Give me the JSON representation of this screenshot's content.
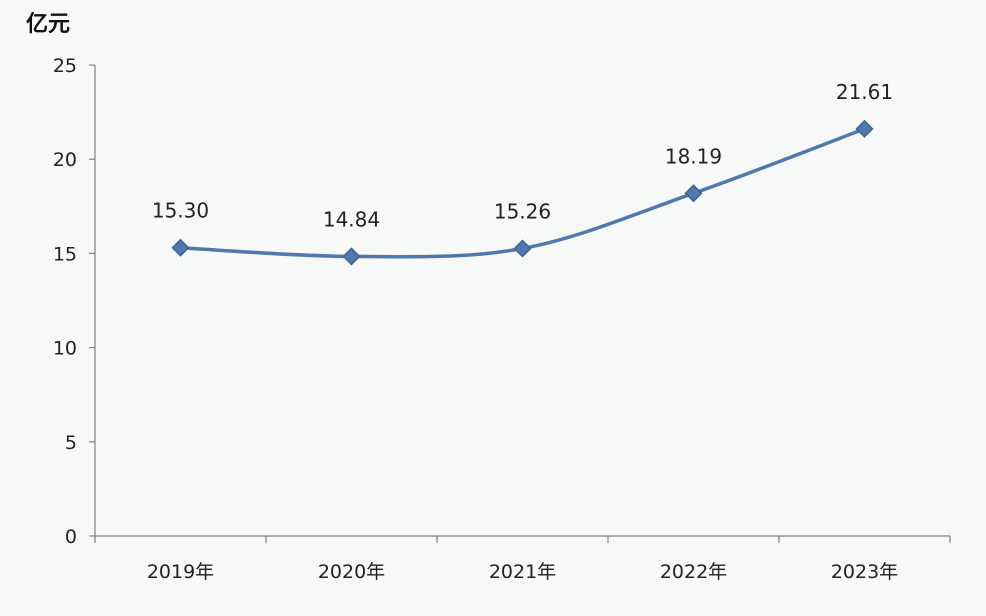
{
  "chart_data": {
    "type": "line",
    "unit_label": "亿元",
    "categories": [
      "2019年",
      "2020年",
      "2021年",
      "2022年",
      "2023年"
    ],
    "series": [
      {
        "values": [
          15.3,
          14.84,
          15.26,
          18.19,
          21.61
        ],
        "data_labels": [
          "15.30",
          "14.84",
          "15.26",
          "18.19",
          "21.61"
        ],
        "color": "#4f79ad",
        "marker": "diamond",
        "smooth": true
      }
    ],
    "yticks": [
      "0",
      "5",
      "10",
      "15",
      "20",
      "25"
    ],
    "ylim": [
      0,
      25
    ],
    "ystep": 5,
    "grid": false,
    "legend": "none"
  }
}
